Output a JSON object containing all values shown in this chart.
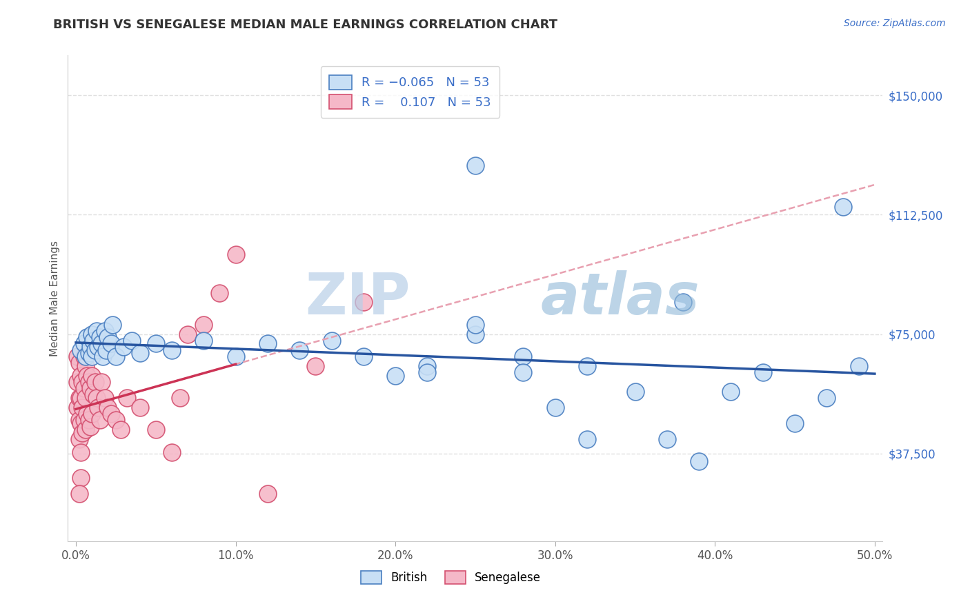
{
  "title": "BRITISH VS SENEGALESE MEDIAN MALE EARNINGS CORRELATION CHART",
  "source": "Source: ZipAtlas.com",
  "ylabel": "Median Male Earnings",
  "xlim": [
    -0.005,
    0.505
  ],
  "ylim": [
    10000,
    162500
  ],
  "yticks": [
    37500,
    75000,
    112500,
    150000
  ],
  "ytick_labels": [
    "$37,500",
    "$75,000",
    "$112,500",
    "$150,000"
  ],
  "xticks": [
    0.0,
    0.1,
    0.2,
    0.3,
    0.4,
    0.5
  ],
  "xtick_labels": [
    "0.0%",
    "10.0%",
    "20.0%",
    "30.0%",
    "40.0%",
    "50.0%"
  ],
  "background_color": "#ffffff",
  "grid_color": "#e0e0e0",
  "title_color": "#333333",
  "title_fontsize": 13,
  "axis_label_color": "#555555",
  "R_british": -0.065,
  "R_senegalese": 0.107,
  "N_british": 53,
  "N_senegalese": 53,
  "british_fill": "#c8dff5",
  "british_edge": "#4a7fc1",
  "senegalese_fill": "#f5b8c8",
  "senegalese_edge": "#d45070",
  "british_line_color": "#2855a0",
  "senegalese_line_color": "#cc3355",
  "dashed_line_color": "#e8a0b0",
  "watermark_color": "#d0dde8",
  "british_x": [
    0.003,
    0.005,
    0.006,
    0.007,
    0.008,
    0.009,
    0.01,
    0.01,
    0.011,
    0.012,
    0.013,
    0.014,
    0.015,
    0.016,
    0.017,
    0.018,
    0.019,
    0.02,
    0.022,
    0.023,
    0.025,
    0.03,
    0.035,
    0.04,
    0.05,
    0.06,
    0.08,
    0.1,
    0.12,
    0.14,
    0.16,
    0.18,
    0.2,
    0.22,
    0.25,
    0.28,
    0.3,
    0.32,
    0.35,
    0.37,
    0.39,
    0.41,
    0.43,
    0.45,
    0.47,
    0.49,
    0.32,
    0.28,
    0.25,
    0.22,
    0.38,
    0.25,
    0.48
  ],
  "british_y": [
    70000,
    72000,
    68000,
    74000,
    69000,
    71000,
    75000,
    68000,
    73000,
    70000,
    76000,
    71000,
    74000,
    72000,
    68000,
    76000,
    70000,
    74000,
    72000,
    78000,
    68000,
    71000,
    73000,
    69000,
    72000,
    70000,
    73000,
    68000,
    72000,
    70000,
    73000,
    68000,
    62000,
    65000,
    128000,
    68000,
    52000,
    65000,
    57000,
    42000,
    35000,
    57000,
    63000,
    47000,
    55000,
    65000,
    42000,
    63000,
    75000,
    63000,
    85000,
    78000,
    115000
  ],
  "senegalese_x": [
    0.001,
    0.001,
    0.001,
    0.002,
    0.002,
    0.002,
    0.002,
    0.003,
    0.003,
    0.003,
    0.003,
    0.004,
    0.004,
    0.004,
    0.005,
    0.005,
    0.005,
    0.006,
    0.006,
    0.006,
    0.007,
    0.007,
    0.008,
    0.008,
    0.009,
    0.009,
    0.01,
    0.01,
    0.011,
    0.012,
    0.013,
    0.014,
    0.015,
    0.016,
    0.018,
    0.02,
    0.022,
    0.025,
    0.028,
    0.032,
    0.04,
    0.05,
    0.06,
    0.065,
    0.07,
    0.08,
    0.09,
    0.1,
    0.12,
    0.15,
    0.18,
    0.003,
    0.002
  ],
  "senegalese_y": [
    68000,
    60000,
    52000,
    66000,
    55000,
    48000,
    42000,
    62000,
    55000,
    47000,
    38000,
    60000,
    52000,
    44000,
    68000,
    58000,
    48000,
    65000,
    55000,
    45000,
    62000,
    50000,
    60000,
    48000,
    58000,
    46000,
    62000,
    50000,
    56000,
    60000,
    55000,
    52000,
    48000,
    60000,
    55000,
    52000,
    50000,
    48000,
    45000,
    55000,
    52000,
    45000,
    38000,
    55000,
    75000,
    78000,
    88000,
    100000,
    25000,
    65000,
    85000,
    30000,
    25000
  ]
}
